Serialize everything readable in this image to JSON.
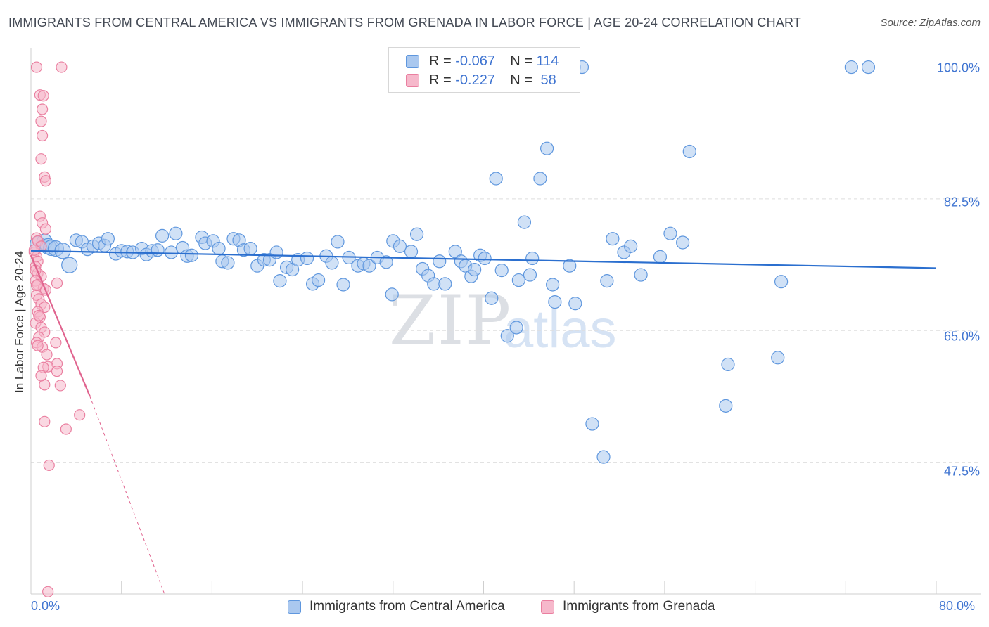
{
  "title": "IMMIGRANTS FROM CENTRAL AMERICA VS IMMIGRANTS FROM GRENADA IN LABOR FORCE | AGE 20-24 CORRELATION CHART",
  "source": "Source: ZipAtlas.com",
  "watermark": {
    "zip": "ZIP",
    "atlas": "atlas"
  },
  "legend": {
    "r_label": "R =",
    "n_label": "N =",
    "series": [
      {
        "r": "-0.067",
        "n": "114"
      },
      {
        "r": "-0.227",
        "n": "58"
      }
    ]
  },
  "colors": {
    "blue_fill": "#aac8ef",
    "blue_stroke": "#5f97de",
    "blue_line": "#2b6fcf",
    "pink_fill": "#f6b8cb",
    "pink_stroke": "#ea7fa0",
    "pink_line": "#e0638e",
    "grid": "#dedede",
    "tick_text": "#3f74d1"
  },
  "chart_data": {
    "type": "scatter",
    "title": "IMMIGRANTS FROM CENTRAL AMERICA VS IMMIGRANTS FROM GRENADA IN LABOR FORCE | AGE 20-24 CORRELATION CHART",
    "xlabel": "",
    "ylabel": "In Labor Force | Age 20-24",
    "xlim": [
      0,
      80
    ],
    "ylim": [
      30,
      101.5
    ],
    "x_tick_labels": [
      "0.0%",
      "80.0%"
    ],
    "y_ticks": [
      47.5,
      65.0,
      82.5,
      100.0
    ],
    "y_tick_labels": [
      "47.5%",
      "65.0%",
      "82.5%",
      "100.0%"
    ],
    "series": [
      {
        "name": "Immigrants from Central America",
        "color": "blue",
        "trend": {
          "x": [
            0,
            80
          ],
          "y": [
            75.6,
            73.3
          ]
        },
        "points": [
          [
            0.6,
            76.5
          ],
          [
            1.2,
            76.8
          ],
          [
            1.5,
            76.2
          ],
          [
            1.8,
            76.0
          ],
          [
            2.2,
            75.9
          ],
          [
            2.8,
            75.6
          ],
          [
            3.4,
            73.7
          ],
          [
            4.0,
            77.0
          ],
          [
            4.5,
            76.8
          ],
          [
            5.0,
            75.8
          ],
          [
            5.5,
            76.2
          ],
          [
            6.0,
            76.6
          ],
          [
            6.5,
            76.3
          ],
          [
            6.8,
            77.2
          ],
          [
            7.5,
            75.2
          ],
          [
            8.0,
            75.6
          ],
          [
            8.5,
            75.5
          ],
          [
            9.0,
            75.4
          ],
          [
            9.8,
            75.9
          ],
          [
            10.2,
            75.1
          ],
          [
            10.7,
            75.6
          ],
          [
            11.2,
            75.7
          ],
          [
            11.6,
            77.6
          ],
          [
            12.4,
            75.4
          ],
          [
            12.8,
            77.9
          ],
          [
            13.4,
            76.0
          ],
          [
            13.8,
            74.9
          ],
          [
            14.2,
            75.0
          ],
          [
            15.1,
            77.4
          ],
          [
            15.4,
            76.6
          ],
          [
            16.1,
            76.9
          ],
          [
            16.6,
            75.9
          ],
          [
            16.9,
            74.2
          ],
          [
            17.4,
            74.0
          ],
          [
            17.9,
            77.2
          ],
          [
            18.4,
            77.0
          ],
          [
            18.8,
            75.7
          ],
          [
            19.4,
            75.9
          ],
          [
            20.0,
            73.6
          ],
          [
            20.6,
            74.4
          ],
          [
            21.1,
            74.4
          ],
          [
            21.7,
            75.4
          ],
          [
            22.0,
            71.6
          ],
          [
            22.6,
            73.4
          ],
          [
            23.1,
            73.1
          ],
          [
            23.6,
            74.4
          ],
          [
            24.4,
            74.6
          ],
          [
            24.9,
            71.2
          ],
          [
            25.4,
            71.7
          ],
          [
            26.1,
            74.9
          ],
          [
            26.6,
            74.0
          ],
          [
            27.1,
            76.8
          ],
          [
            27.6,
            71.1
          ],
          [
            28.1,
            74.7
          ],
          [
            28.9,
            73.6
          ],
          [
            29.4,
            73.9
          ],
          [
            29.9,
            73.6
          ],
          [
            30.6,
            74.7
          ],
          [
            31.4,
            74.1
          ],
          [
            31.9,
            69.8
          ],
          [
            32.0,
            76.9
          ],
          [
            32.6,
            76.2
          ],
          [
            33.6,
            75.5
          ],
          [
            34.1,
            77.8
          ],
          [
            34.6,
            73.2
          ],
          [
            35.1,
            72.3
          ],
          [
            35.6,
            71.2
          ],
          [
            36.1,
            74.2
          ],
          [
            36.6,
            71.2
          ],
          [
            37.5,
            75.5
          ],
          [
            38.0,
            74.2
          ],
          [
            38.4,
            73.6
          ],
          [
            38.9,
            72.2
          ],
          [
            39.2,
            73.1
          ],
          [
            39.7,
            75.0
          ],
          [
            40.1,
            74.6
          ],
          [
            40.7,
            69.3
          ],
          [
            41.1,
            85.2
          ],
          [
            41.6,
            73.0
          ],
          [
            42.1,
            64.3
          ],
          [
            42.9,
            65.4
          ],
          [
            43.1,
            71.7
          ],
          [
            43.6,
            79.4
          ],
          [
            44.1,
            72.4
          ],
          [
            44.3,
            74.6
          ],
          [
            45.0,
            85.2
          ],
          [
            45.6,
            89.2
          ],
          [
            46.1,
            71.1
          ],
          [
            46.3,
            68.8
          ],
          [
            47.6,
            73.6
          ],
          [
            48.1,
            68.6
          ],
          [
            49.6,
            52.6
          ],
          [
            50.6,
            48.2
          ],
          [
            50.9,
            71.6
          ],
          [
            51.4,
            77.2
          ],
          [
            52.4,
            75.4
          ],
          [
            53.0,
            76.2
          ],
          [
            53.9,
            72.4
          ],
          [
            55.6,
            74.8
          ],
          [
            56.5,
            77.9
          ],
          [
            57.6,
            76.7
          ],
          [
            58.2,
            88.8
          ],
          [
            61.4,
            55.0
          ],
          [
            61.6,
            60.5
          ],
          [
            66.0,
            61.4
          ],
          [
            66.3,
            71.5
          ],
          [
            72.5,
            100.0
          ],
          [
            74.0,
            100.0
          ],
          [
            48.0,
            100.0
          ],
          [
            48.7,
            100.0
          ]
        ],
        "sizes_note": "most points medium; a few large near x=0-4"
      },
      {
        "name": "Immigrants from Grenada",
        "color": "pink",
        "trend": {
          "x": [
            0,
            5.2
          ],
          "y": [
            75.0,
            56.3
          ]
        },
        "trend_extension": {
          "x": [
            5.2,
            11.8
          ],
          "y": [
            56.3,
            30.0
          ]
        },
        "points": [
          [
            0.5,
            100.0
          ],
          [
            2.7,
            100.0
          ],
          [
            0.8,
            96.3
          ],
          [
            1.1,
            96.2
          ],
          [
            1.0,
            94.4
          ],
          [
            0.9,
            92.8
          ],
          [
            1.0,
            90.9
          ],
          [
            0.9,
            87.8
          ],
          [
            1.2,
            85.4
          ],
          [
            1.3,
            84.9
          ],
          [
            0.8,
            80.2
          ],
          [
            1.0,
            79.3
          ],
          [
            1.3,
            78.5
          ],
          [
            0.5,
            77.3
          ],
          [
            0.6,
            76.9
          ],
          [
            0.9,
            76.2
          ],
          [
            0.3,
            75.4
          ],
          [
            0.5,
            74.8
          ],
          [
            0.6,
            74.2
          ],
          [
            0.4,
            73.5
          ],
          [
            0.6,
            72.6
          ],
          [
            0.9,
            72.2
          ],
          [
            0.4,
            71.6
          ],
          [
            0.6,
            71.1
          ],
          [
            1.1,
            70.6
          ],
          [
            1.3,
            70.4
          ],
          [
            0.5,
            69.7
          ],
          [
            0.7,
            69.2
          ],
          [
            0.9,
            68.5
          ],
          [
            1.2,
            68.1
          ],
          [
            0.6,
            67.5
          ],
          [
            0.8,
            66.8
          ],
          [
            0.4,
            66.0
          ],
          [
            0.9,
            65.4
          ],
          [
            1.2,
            64.8
          ],
          [
            0.7,
            64.1
          ],
          [
            0.5,
            63.4
          ],
          [
            1.0,
            62.8
          ],
          [
            2.2,
            63.4
          ],
          [
            2.3,
            71.3
          ],
          [
            1.4,
            61.8
          ],
          [
            2.3,
            60.6
          ],
          [
            1.5,
            60.2
          ],
          [
            1.1,
            60.1
          ],
          [
            2.3,
            59.6
          ],
          [
            1.2,
            57.8
          ],
          [
            2.6,
            57.7
          ],
          [
            4.3,
            53.8
          ],
          [
            1.2,
            52.9
          ],
          [
            3.1,
            51.9
          ],
          [
            1.6,
            47.1
          ],
          [
            1.5,
            30.3
          ],
          [
            0.3,
            75.7
          ],
          [
            0.4,
            73.0
          ],
          [
            0.5,
            71.0
          ],
          [
            0.7,
            67.0
          ],
          [
            0.6,
            63.0
          ],
          [
            0.9,
            59.0
          ]
        ]
      }
    ],
    "legend_labels": [
      "Immigrants from Central America",
      "Immigrants from Grenada"
    ]
  }
}
